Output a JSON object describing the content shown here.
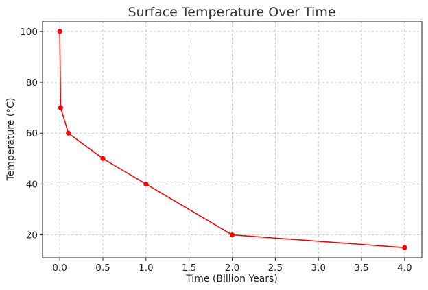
{
  "chart_data": {
    "type": "line",
    "title": "Surface Temperature Over Time",
    "xlabel": "Time (Billion Years)",
    "ylabel": "Temperature (°C)",
    "xlim": [
      -0.2,
      4.2
    ],
    "ylim": [
      11,
      104
    ],
    "x_ticks": [
      0.0,
      0.5,
      1.0,
      1.5,
      2.0,
      2.5,
      3.0,
      3.5,
      4.0
    ],
    "x_tick_labels": [
      "0.0",
      "0.5",
      "1.0",
      "1.5",
      "2.0",
      "2.5",
      "3.0",
      "3.5",
      "4.0"
    ],
    "y_ticks": [
      20,
      40,
      60,
      80,
      100
    ],
    "y_tick_labels": [
      "20",
      "40",
      "60",
      "80",
      "100"
    ],
    "grid": true,
    "series": [
      {
        "color": "#ff0000",
        "x": [
          0,
          0.01,
          0.1,
          0.5,
          1,
          2,
          4
        ],
        "y": [
          100,
          70,
          60,
          50,
          40,
          20,
          15
        ]
      }
    ]
  }
}
